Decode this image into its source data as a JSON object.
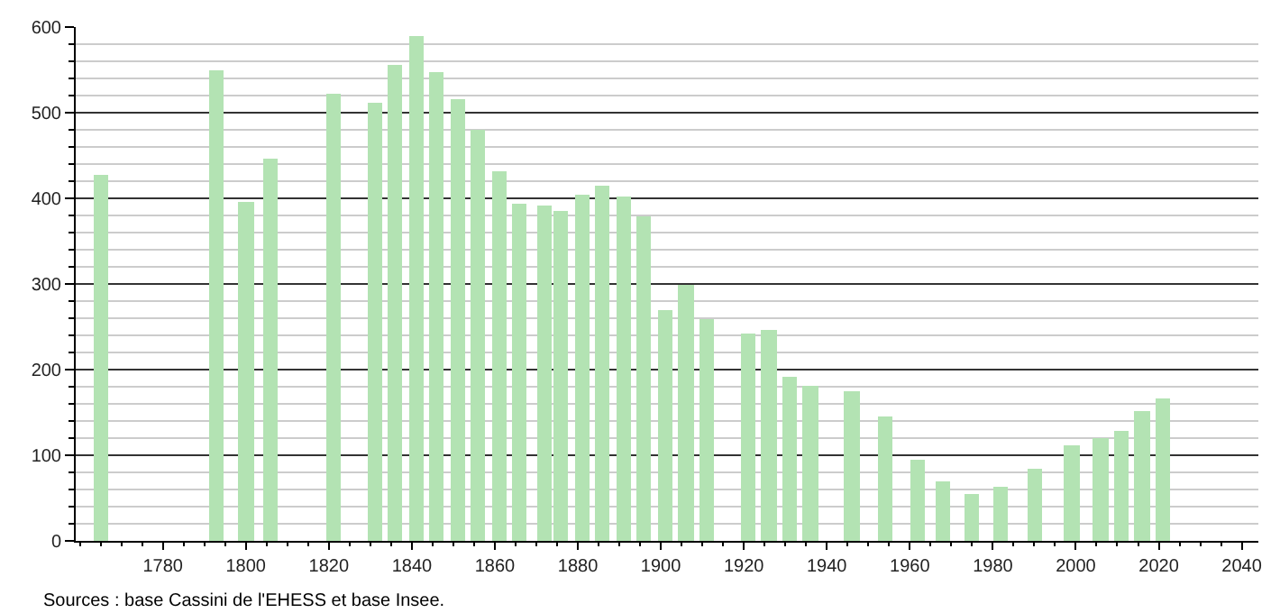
{
  "chart_data": {
    "type": "bar",
    "x": [
      1765,
      1793,
      1800,
      1806,
      1821,
      1831,
      1836,
      1841,
      1846,
      1851,
      1856,
      1861,
      1866,
      1872,
      1876,
      1881,
      1886,
      1891,
      1896,
      1901,
      1906,
      1911,
      1921,
      1926,
      1931,
      1936,
      1946,
      1954,
      1962,
      1968,
      1975,
      1982,
      1990,
      1999,
      2006,
      2011,
      2016,
      2021
    ],
    "values": [
      428,
      549,
      395,
      446,
      522,
      511,
      556,
      590,
      547,
      516,
      480,
      431,
      394,
      391,
      386,
      404,
      415,
      402,
      379,
      270,
      299,
      258,
      243,
      247,
      191,
      182,
      174,
      145,
      95,
      70,
      54,
      64,
      85,
      112,
      120,
      129,
      151,
      166
    ],
    "color": "#b3e3b3",
    "xlim": [
      1759,
      2044
    ],
    "xticks": [
      1780,
      1800,
      1820,
      1840,
      1860,
      1880,
      1900,
      1920,
      1940,
      1960,
      1980,
      2000,
      2020,
      2040
    ],
    "ylim": [
      0,
      600
    ],
    "yticks": [
      0,
      100,
      200,
      300,
      400,
      500,
      600
    ],
    "grid": "y",
    "annotations": [
      "Sources : base Cassini de l'EHESS et base Insee."
    ]
  }
}
